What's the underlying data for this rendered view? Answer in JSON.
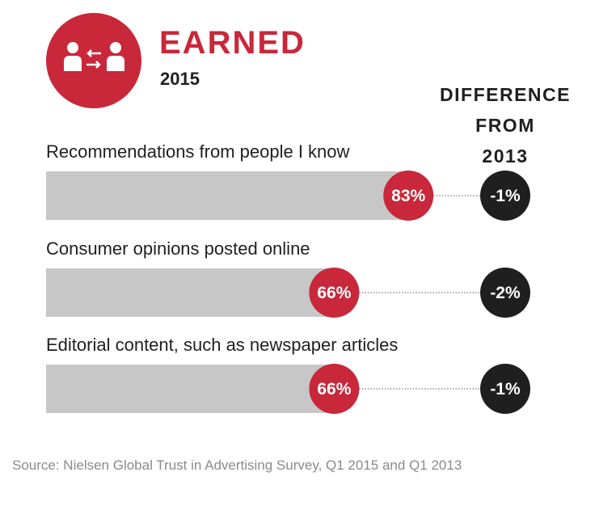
{
  "header": {
    "title": "EARNED",
    "year": "2015",
    "icon": "people-exchange-icon"
  },
  "difference_heading": "DIFFERENCE\nFROM\n2013",
  "colors": {
    "accent": "#c8283a",
    "bar": "#c7c7c7",
    "difference_circle": "#1f1f1f"
  },
  "chart_data": {
    "type": "bar",
    "orientation": "horizontal",
    "categories": [
      "Recommendations from people I know",
      "Consumer opinions posted online",
      "Editorial content, such as newspaper articles"
    ],
    "values": [
      83,
      66,
      66
    ],
    "value_labels": [
      "83%",
      "66%",
      "66%"
    ],
    "difference": [
      -1,
      -2,
      -1
    ],
    "difference_labels": [
      "-1%",
      "-2%",
      "-1%"
    ],
    "xlim": [
      0,
      100
    ]
  },
  "source": "Source: Nielsen Global Trust in Advertising Survey, Q1 2015 and Q1 2013"
}
